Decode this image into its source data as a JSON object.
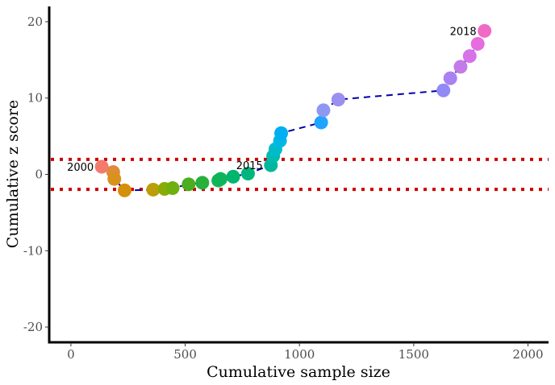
{
  "chart_data": {
    "type": "scatter",
    "title": "",
    "xlabel": "Cumulative sample size",
    "ylabel": "Cumulative z score",
    "xlim": [
      -95,
      2090
    ],
    "ylim": [
      -22,
      22
    ],
    "xticks": [
      0,
      500,
      1000,
      1500,
      2000
    ],
    "yticks": [
      -20,
      -10,
      0,
      10,
      20
    ],
    "x_tick_labels": [
      "0",
      "500",
      "1000",
      "1500",
      "2000"
    ],
    "y_tick_labels": [
      "-20",
      "-10",
      "0",
      "10",
      "20"
    ],
    "grid": false,
    "legend": "none",
    "threshold_lines": [
      1.96,
      -1.96
    ],
    "threshold_color": "#cc0000",
    "trend_line_color": "#0000aa",
    "points": [
      {
        "x": 135,
        "y": 1.0,
        "color": "#f27b6d"
      },
      {
        "x": 185,
        "y": 0.3,
        "color": "#e08a3c"
      },
      {
        "x": 190,
        "y": -0.6,
        "color": "#d8921e"
      },
      {
        "x": 235,
        "y": -2.1,
        "color": "#d58f0a"
      },
      {
        "x": 360,
        "y": -2.0,
        "color": "#bc9e08"
      },
      {
        "x": 410,
        "y": -1.9,
        "color": "#8aab06"
      },
      {
        "x": 445,
        "y": -1.8,
        "color": "#6fb00e"
      },
      {
        "x": 515,
        "y": -1.3,
        "color": "#4aae1f"
      },
      {
        "x": 575,
        "y": -1.1,
        "color": "#27b03c"
      },
      {
        "x": 645,
        "y": -0.8,
        "color": "#15b452"
      },
      {
        "x": 655,
        "y": -0.6,
        "color": "#0fb45a"
      },
      {
        "x": 710,
        "y": -0.3,
        "color": "#00b56e"
      },
      {
        "x": 775,
        "y": 0.1,
        "color": "#00b67e"
      },
      {
        "x": 875,
        "y": 1.2,
        "color": "#00b79b"
      },
      {
        "x": 885,
        "y": 2.4,
        "color": "#00bbb2"
      },
      {
        "x": 895,
        "y": 3.3,
        "color": "#00bccb"
      },
      {
        "x": 915,
        "y": 4.4,
        "color": "#00b8e2"
      },
      {
        "x": 920,
        "y": 5.4,
        "color": "#00aef1"
      },
      {
        "x": 1095,
        "y": 6.8,
        "color": "#1fa4ff"
      },
      {
        "x": 1105,
        "y": 8.4,
        "color": "#8e98f2"
      },
      {
        "x": 1170,
        "y": 9.8,
        "color": "#9b8ff0"
      },
      {
        "x": 1630,
        "y": 11.0,
        "color": "#9189f5"
      },
      {
        "x": 1660,
        "y": 12.6,
        "color": "#a981f2"
      },
      {
        "x": 1705,
        "y": 14.1,
        "color": "#c47ae8"
      },
      {
        "x": 1745,
        "y": 15.5,
        "color": "#d872e8"
      },
      {
        "x": 1780,
        "y": 17.1,
        "color": "#e76ce0"
      },
      {
        "x": 1810,
        "y": 18.8,
        "color": "#f06ac5"
      }
    ],
    "annotations": [
      {
        "text": "2000",
        "x": 135,
        "y": 1.0
      },
      {
        "text": "2015",
        "x": 875,
        "y": 1.2
      },
      {
        "text": "2018",
        "x": 1810,
        "y": 18.8
      }
    ]
  }
}
